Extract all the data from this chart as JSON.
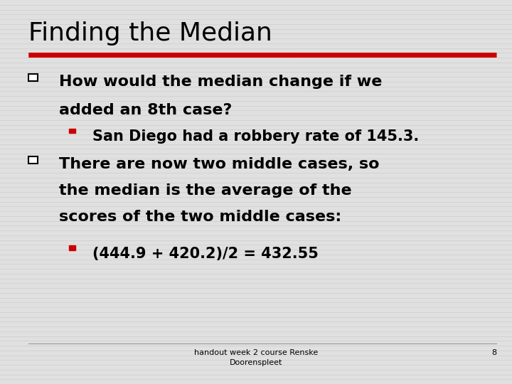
{
  "title": "Finding the Median",
  "title_fontsize": 26,
  "title_color": "#000000",
  "background_color": "#e0e0e0",
  "line_color": "#cc0000",
  "bullet1_line1": "How would the median change if we",
  "bullet1_line2": "added an 8th case?",
  "sub_bullet1": "San Diego had a robbery rate of 145.3.",
  "bullet2_line1": "There are now two middle cases, so",
  "bullet2_line2": "the median is the average of the",
  "bullet2_line3": "scores of the two middle cases:",
  "sub_bullet2": "(444.9 + 420.2)/2 = 432.55",
  "footer_line1": "handout week 2 course Renske",
  "footer_line2": "Doorenspleet",
  "page_number": "8",
  "bullet_outline_color": "#000000",
  "sub_bullet_color": "#cc0000",
  "text_color": "#000000",
  "body_fontsize": 16,
  "sub_fontsize": 15,
  "footer_fontsize": 8,
  "striped_color": "#d0d0d0",
  "line_sep_color": "#999999"
}
